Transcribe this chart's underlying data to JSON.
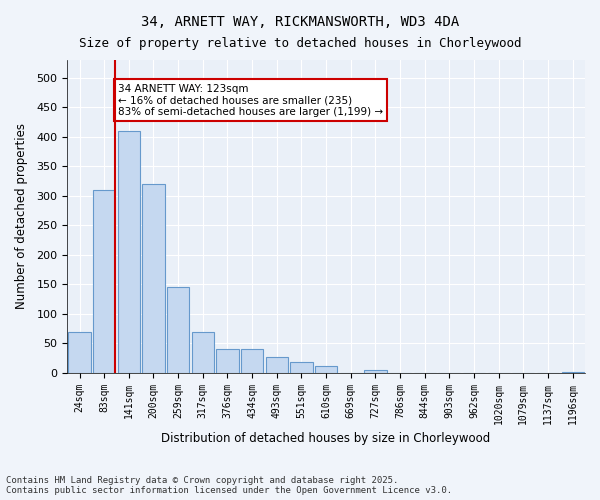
{
  "title1": "34, ARNETT WAY, RICKMANSWORTH, WD3 4DA",
  "title2": "Size of property relative to detached houses in Chorleywood",
  "xlabel": "Distribution of detached houses by size in Chorleywood",
  "ylabel": "Number of detached properties",
  "bar_color": "#c5d8f0",
  "bar_edge_color": "#6699cc",
  "categories": [
    "24sqm",
    "83sqm",
    "141sqm",
    "200sqm",
    "259sqm",
    "317sqm",
    "376sqm",
    "434sqm",
    "493sqm",
    "551sqm",
    "610sqm",
    "669sqm",
    "727sqm",
    "786sqm",
    "844sqm",
    "903sqm",
    "962sqm",
    "1020sqm",
    "1079sqm",
    "1137sqm",
    "1196sqm"
  ],
  "values": [
    70,
    310,
    410,
    320,
    145,
    70,
    40,
    40,
    27,
    18,
    12,
    0,
    5,
    0,
    0,
    0,
    0,
    0,
    0,
    0,
    2
  ],
  "property_line_x": 1,
  "annotation_text": "34 ARNETT WAY: 123sqm\n← 16% of detached houses are smaller (235)\n83% of semi-detached houses are larger (1,199) →",
  "annotation_box_color": "#ffffff",
  "annotation_box_edge_color": "#cc0000",
  "vline_color": "#cc0000",
  "footer": "Contains HM Land Registry data © Crown copyright and database right 2025.\nContains public sector information licensed under the Open Government Licence v3.0.",
  "ylim": [
    0,
    530
  ],
  "bg_color": "#f0f4fa",
  "plot_bg_color": "#eaf0f8"
}
